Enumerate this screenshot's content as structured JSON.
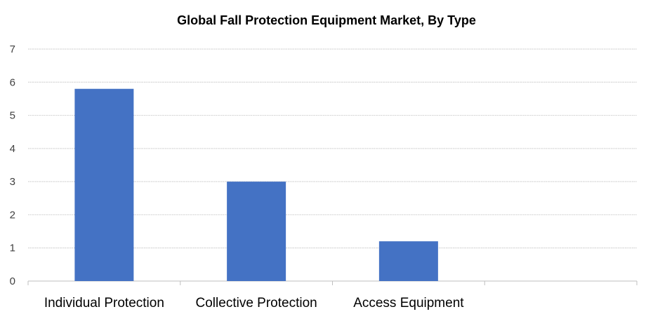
{
  "chart_data": {
    "type": "bar",
    "title": "Global Fall Protection Equipment Market, By Type",
    "xlabel": "",
    "ylabel": "",
    "categories": [
      "Individual Protection",
      "Collective Protection",
      "Access Equipment",
      ""
    ],
    "values": [
      5.8,
      3.0,
      1.2,
      null
    ],
    "ylim": [
      0,
      7
    ],
    "yticks": [
      "0",
      "1",
      "2",
      "3",
      "4",
      "5",
      "6",
      "7"
    ],
    "grid": true,
    "legend": "none",
    "bar_color": "#4472C4"
  }
}
